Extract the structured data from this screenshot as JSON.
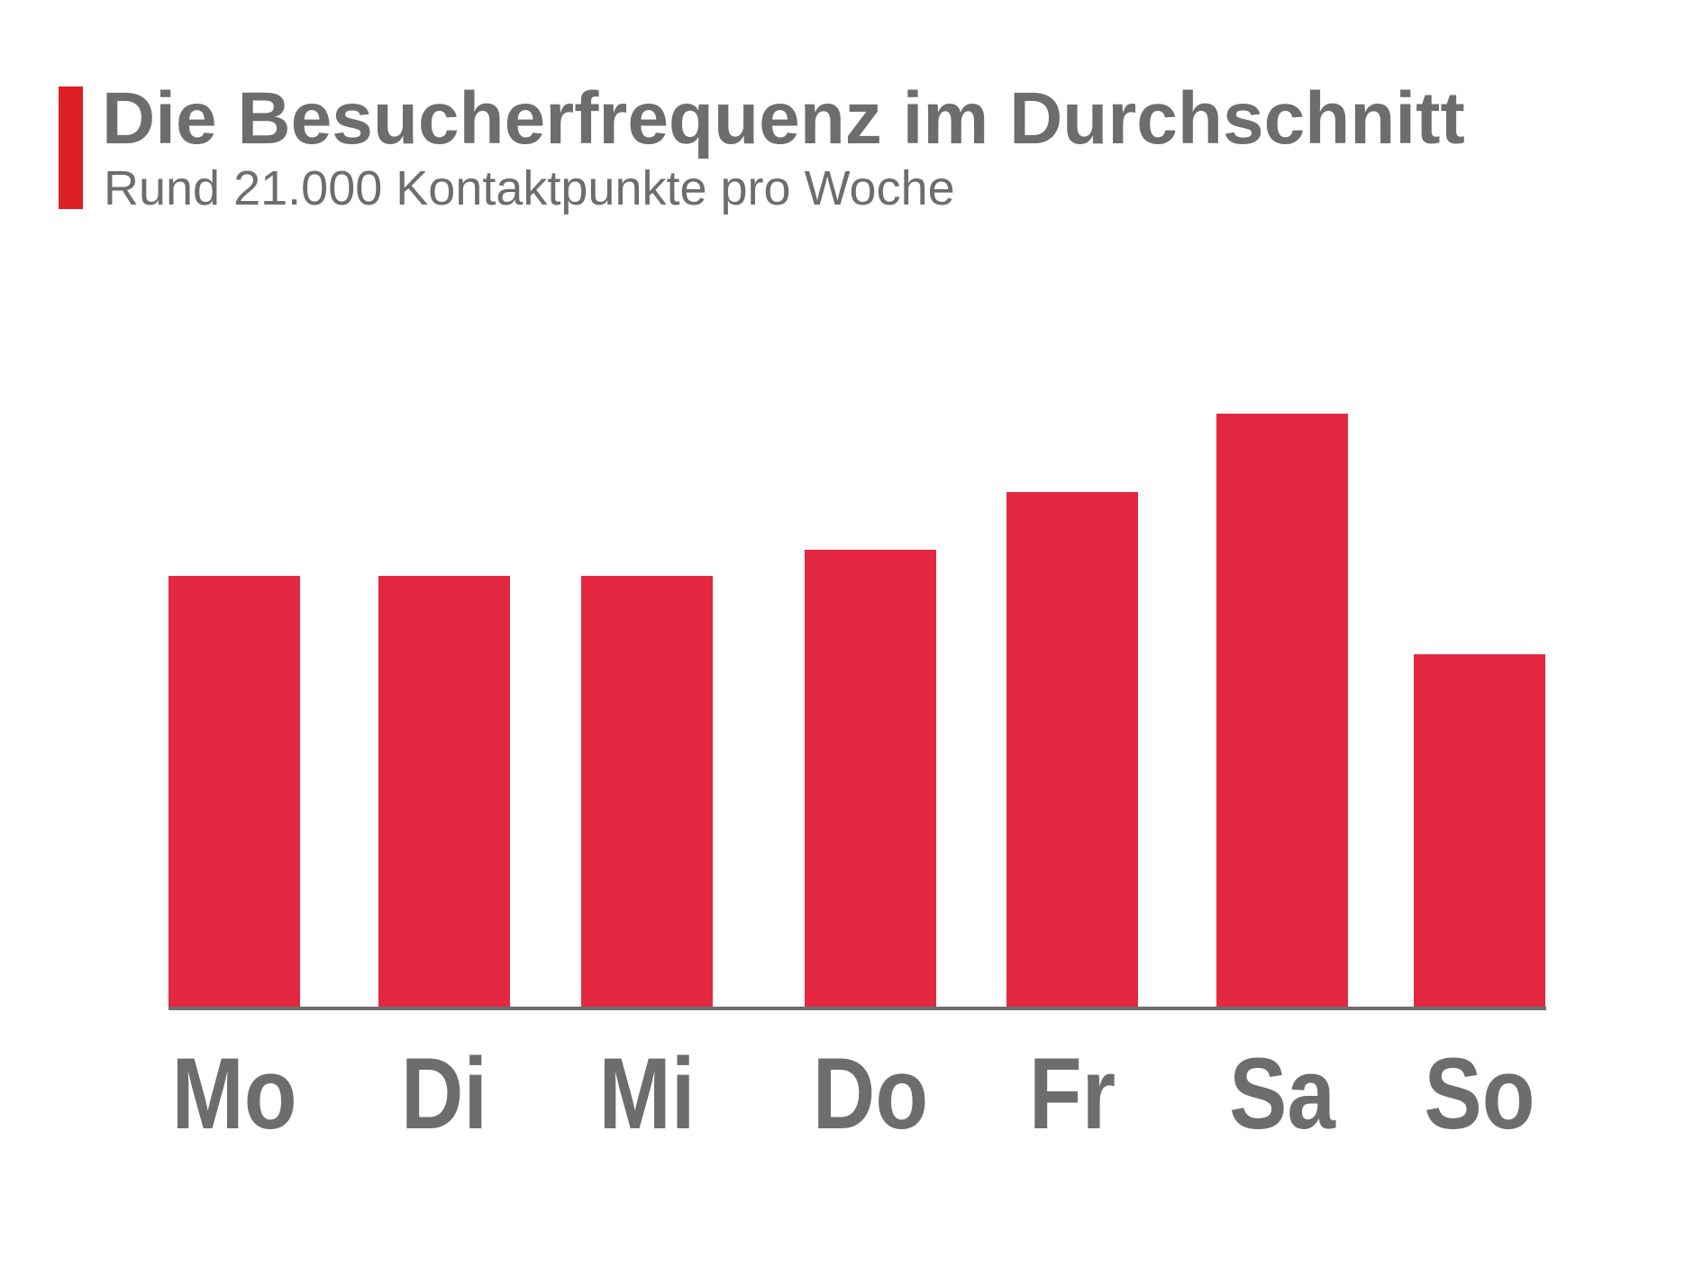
{
  "header": {
    "title": "Die Besucherfrequenz im Durchschnitt",
    "subtitle": "Rund 21.000 Kontaktpunkte pro Woche"
  },
  "colors": {
    "bar": "#e52842",
    "accent": "#dc2026",
    "text": "#6d6d6d",
    "axis": "#6d6d6d"
  },
  "chart_data": {
    "type": "bar",
    "title": "",
    "xlabel": "",
    "ylabel": "",
    "categories": [
      "Mo",
      "Di",
      "Mi",
      "Do",
      "Fr",
      "Sa",
      "So"
    ],
    "values": [
      478,
      478,
      478,
      507,
      571,
      658,
      391
    ],
    "ylim": [
      0,
      700
    ],
    "grid": false,
    "legend": "none"
  }
}
